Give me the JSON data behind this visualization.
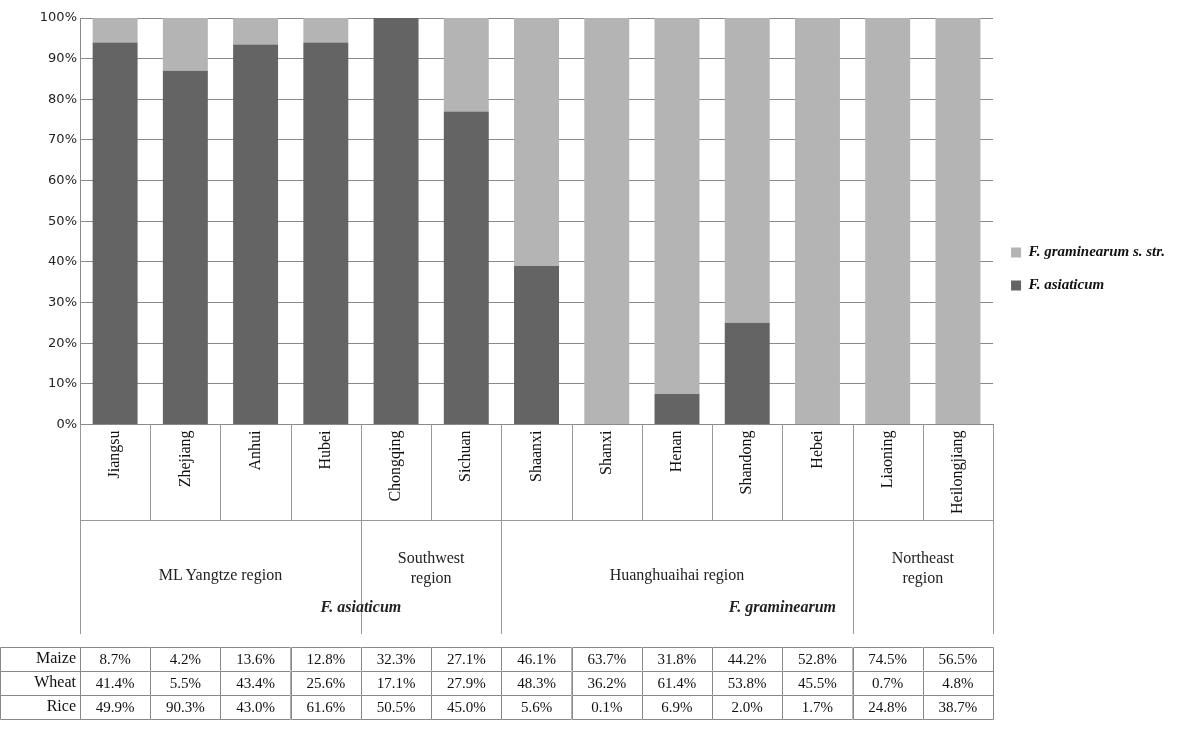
{
  "chart_data": [
    {
      "type": "bar",
      "stacked": true,
      "categories": [
        "Jiangsu",
        "Zhejiang",
        "Anhui",
        "Hubei",
        "Chongqing",
        "Sichuan",
        "Shaanxi",
        "Shanxi",
        "Henan",
        "Shandong",
        "Hebei",
        "Liaoning",
        "Heilongjiang"
      ],
      "series": [
        {
          "name": "F. asiaticum",
          "color": "#646464",
          "values": [
            94,
            87,
            93.5,
            94,
            100,
            77,
            39,
            0,
            7.5,
            25,
            0,
            0,
            0
          ]
        },
        {
          "name": "F. graminearum s. str.",
          "color": "#b4b4b4",
          "values": [
            6,
            13,
            6.5,
            6,
            0,
            23,
            61,
            100,
            92.5,
            75,
            100,
            100,
            100
          ]
        }
      ],
      "ylim": [
        0,
        100
      ],
      "yticks": [
        {
          "value": 0,
          "label": "0%"
        },
        {
          "value": 10,
          "label": "10%"
        },
        {
          "value": 20,
          "label": "20%"
        },
        {
          "value": 30,
          "label": "30%"
        },
        {
          "value": 40,
          "label": "40%"
        },
        {
          "value": 50,
          "label": "50%"
        },
        {
          "value": 60,
          "label": "60%"
        },
        {
          "value": 70,
          "label": "70%"
        },
        {
          "value": 80,
          "label": "80%"
        },
        {
          "value": 90,
          "label": "90%"
        },
        {
          "value": 100,
          "label": "100%"
        }
      ],
      "grid": "y",
      "legend": "right",
      "annotations": [
        "ML Yangtze region",
        "Southwest region",
        "Huanghuaihai region",
        "Northeast region",
        "F. asiaticum",
        "F. graminearum"
      ]
    },
    {
      "type": "heatmap",
      "categories": [
        null,
        null,
        null,
        null,
        null,
        null,
        null,
        null,
        null,
        null,
        null,
        null,
        null
      ],
      "y_categories": [
        "Maize",
        "Wheat",
        "Rice"
      ],
      "cells": [
        [
          8.7,
          4.2,
          13.6,
          12.8,
          32.3,
          27.1,
          46.1,
          63.7,
          31.8,
          44.2,
          52.8,
          74.5,
          56.5
        ],
        [
          41.4,
          5.5,
          43.4,
          25.6,
          17.1,
          27.9,
          48.3,
          36.2,
          61.4,
          53.8,
          45.5,
          0.7,
          4.8
        ],
        [
          49.9,
          90.3,
          43.0,
          61.6,
          50.5,
          45.0,
          5.6,
          0.1,
          6.9,
          2.0,
          1.7,
          24.8,
          38.7
        ]
      ],
      "cell_labels": [
        [
          "8.7%",
          "4.2%",
          "13.6%",
          "12.8%",
          "32.3%",
          "27.1%",
          "46.1%",
          "63.7%",
          "31.8%",
          "44.2%",
          "52.8%",
          "74.5%",
          "56.5%"
        ],
        [
          "41.4%",
          "5.5%",
          "43.4%",
          "25.6%",
          "17.1%",
          "27.9%",
          "48.3%",
          "36.2%",
          "61.4%",
          "53.8%",
          "45.5%",
          "0.7%",
          "4.8%"
        ],
        [
          "49.9%",
          "90.3%",
          "43.0%",
          "61.6%",
          "50.5%",
          "45.0%",
          "5.6%",
          "0.1%",
          "6.9%",
          "2.0%",
          "1.7%",
          "24.8%",
          "38.7%"
        ]
      ],
      "tick_labels": "y"
    }
  ]
}
